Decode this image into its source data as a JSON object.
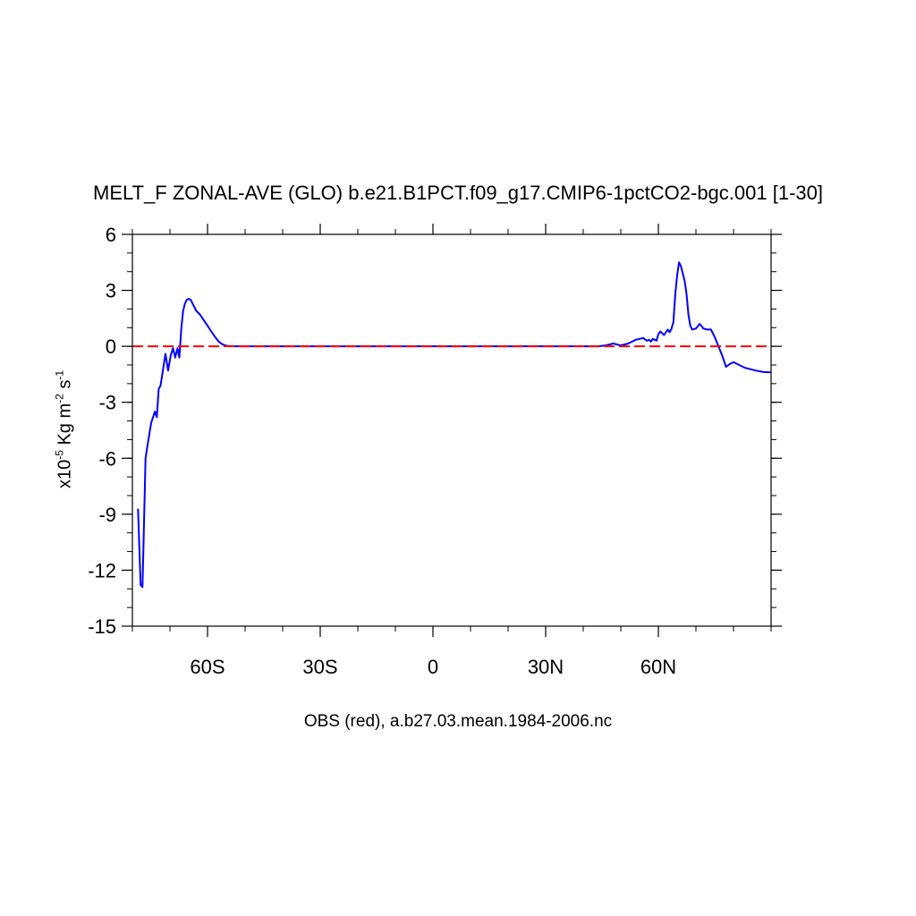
{
  "chart_data": {
    "type": "line",
    "title": "MELT_F ZONAL-AVE (GLO) b.e21.B1PCT.f09_g17.CMIP6-1pctCO2-bgc.001 [1-30]",
    "xlabel": "OBS (red), a.b27.03.mean.1984-2006.nc",
    "ylabel": {
      "base": "x10",
      "exp": "-5",
      "units_a": " Kg m",
      "units_b_exp": "-2",
      "units_c": " s",
      "units_d_exp": "-1"
    },
    "xlim": [
      -80,
      90
    ],
    "ylim": [
      -15,
      6
    ],
    "grid": false,
    "x_ticks": [
      {
        "value": -60,
        "label": "60S"
      },
      {
        "value": -30,
        "label": "30S"
      },
      {
        "value": 0,
        "label": "0"
      },
      {
        "value": 30,
        "label": "30N"
      },
      {
        "value": 60,
        "label": "60N"
      }
    ],
    "y_ticks": [
      {
        "value": 6,
        "label": "6"
      },
      {
        "value": 3,
        "label": "3"
      },
      {
        "value": 0,
        "label": "0"
      },
      {
        "value": -3,
        "label": "-3"
      },
      {
        "value": -6,
        "label": "-6"
      },
      {
        "value": -9,
        "label": "-9"
      },
      {
        "value": -12,
        "label": "-12"
      },
      {
        "value": -15,
        "label": "-15"
      }
    ],
    "series": [
      {
        "color": "#0000ff",
        "style": "solid",
        "x": [
          -78.5,
          -77.8,
          -77.3,
          -76.5,
          -75.8,
          -75.0,
          -74.5,
          -74.0,
          -73.5,
          -73.0,
          -72.5,
          -71.8,
          -71.2,
          -70.5,
          -69.8,
          -69.2,
          -68.6,
          -68.0,
          -67.5,
          -67.0,
          -66.5,
          -66.0,
          -65.5,
          -65.0,
          -64.5,
          -64.0,
          -63.5,
          -63.0,
          -62.5,
          -62.0,
          -61.0,
          -60.0,
          -59.0,
          -58.0,
          -57.0,
          -56.0,
          -55.0,
          -54.0,
          -53.0,
          -52.0,
          -50.0,
          -40.0,
          -30.0,
          -20.0,
          -10.0,
          0.0,
          10.0,
          20.0,
          30.0,
          40.0,
          44.0,
          46.0,
          47.0,
          48.0,
          49.0,
          50.0,
          51.0,
          52.0,
          53.0,
          54.0,
          55.0,
          56.0,
          56.5,
          57.0,
          57.5,
          58.0,
          58.5,
          59.0,
          59.5,
          60.0,
          60.5,
          61.0,
          61.5,
          62.0,
          62.5,
          63.0,
          63.5,
          64.0,
          64.5,
          65.0,
          65.5,
          66.0,
          66.5,
          67.0,
          67.5,
          68.0,
          68.5,
          69.0,
          70.0,
          71.0,
          72.0,
          73.0,
          74.0,
          75.0,
          76.0,
          77.0,
          78.0,
          79.0,
          80.0,
          81.0,
          82.0,
          83.0,
          84.0,
          86.0,
          88.0,
          90.0
        ],
        "y": [
          -8.7,
          -12.8,
          -12.9,
          -6.0,
          -5.1,
          -4.1,
          -3.8,
          -3.5,
          -3.8,
          -2.3,
          -2.1,
          -1.2,
          -0.4,
          -1.3,
          -0.5,
          -0.1,
          -0.6,
          -0.1,
          -0.6,
          0.9,
          1.9,
          2.3,
          2.5,
          2.55,
          2.5,
          2.3,
          2.1,
          1.9,
          1.8,
          1.7,
          1.4,
          1.1,
          0.8,
          0.5,
          0.25,
          0.1,
          0.03,
          0.01,
          0.0,
          0.0,
          0.0,
          0.0,
          0.0,
          0.0,
          0.0,
          0.0,
          0.0,
          0.0,
          0.0,
          0.0,
          0.0,
          0.05,
          0.1,
          0.15,
          0.1,
          0.05,
          0.1,
          0.15,
          0.25,
          0.35,
          0.4,
          0.45,
          0.35,
          0.3,
          0.35,
          0.25,
          0.4,
          0.35,
          0.3,
          0.65,
          0.8,
          0.7,
          0.6,
          0.75,
          0.9,
          0.75,
          0.95,
          1.3,
          2.8,
          3.8,
          4.5,
          4.3,
          3.9,
          3.5,
          2.8,
          1.7,
          1.1,
          0.9,
          0.95,
          1.2,
          0.95,
          0.9,
          0.9,
          0.5,
          0.0,
          -0.5,
          -1.1,
          -0.95,
          -0.85,
          -0.95,
          -1.05,
          -1.15,
          -1.2,
          -1.3,
          -1.38,
          -1.4
        ]
      },
      {
        "color": "#ff0000",
        "style": "dashed",
        "x": [
          -80,
          90
        ],
        "y": [
          0,
          0
        ]
      }
    ]
  }
}
